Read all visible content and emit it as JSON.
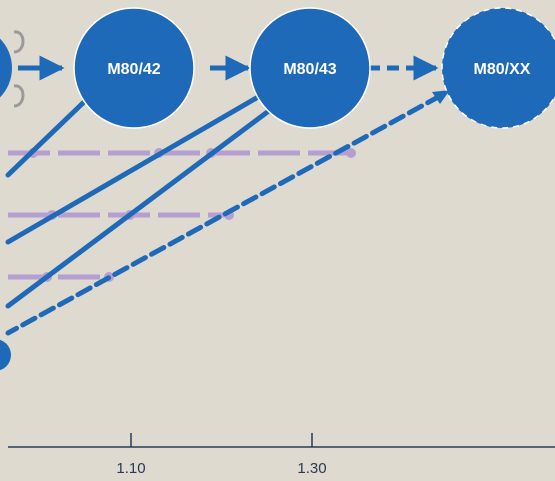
{
  "nodes": [
    {
      "id": "m80-42",
      "label": "M80/42"
    },
    {
      "id": "m80-43",
      "label": "M80/43"
    },
    {
      "id": "m80-xx",
      "label": "M80/XX"
    }
  ],
  "axis": {
    "ticks": [
      {
        "label": "1.10"
      },
      {
        "label": "1.30"
      }
    ]
  },
  "colors": {
    "background": "#dedad0",
    "node_fill": "#1f6ab8",
    "node_stroke": "#ffffff",
    "arrow": "#1f6ab8",
    "lilac": "#b59fd0",
    "axis": "#2a3a55"
  }
}
